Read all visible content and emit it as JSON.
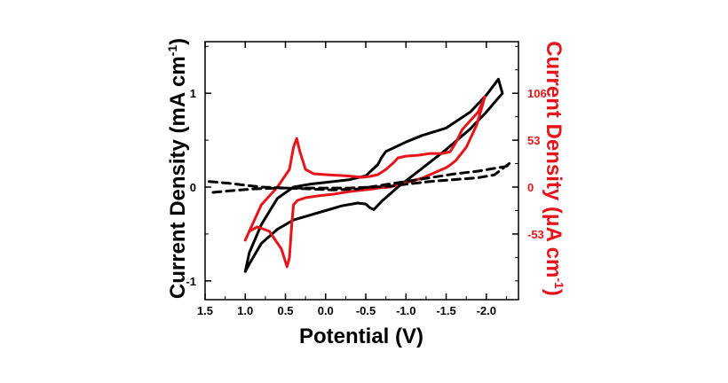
{
  "chart_data": {
    "type": "line",
    "xlabel": "Potential (V)",
    "ylabel_left": "Current Density (mA cm",
    "ylabel_left_sup": "-1",
    "ylabel_left_close": ")",
    "ylabel_right": "Current Density (μA cm",
    "ylabel_right_sup": "-1",
    "ylabel_right_close": ")",
    "x_axis": {
      "reversed": true,
      "lim": [
        1.5,
        -2.4
      ],
      "ticks": [
        1.5,
        1.0,
        0.5,
        0.0,
        -0.5,
        -1.0,
        -1.5,
        -2.0
      ],
      "tick_labels": [
        "1.5",
        "1.0",
        "0.5",
        "0.0",
        "-0.5",
        "-1.0",
        "-1.5",
        "-2.0"
      ]
    },
    "y_left": {
      "lim": [
        -1.2,
        1.55
      ],
      "ticks": [
        -1,
        0,
        1
      ],
      "tick_labels": [
        "-1",
        "0",
        "1"
      ],
      "color": "#000000"
    },
    "y_right": {
      "lim": [
        -127.2,
        164.3
      ],
      "ticks": [
        -53,
        0,
        53,
        106
      ],
      "tick_labels": [
        "-53",
        "0",
        "53",
        "106"
      ],
      "color": "#e8141b"
    },
    "series": [
      {
        "axis": "left",
        "color": "#000000",
        "style": "solid",
        "x": [
          1.0,
          0.95,
          0.8,
          0.6,
          0.4,
          0.2,
          0.0,
          -0.2,
          -0.4,
          -0.5,
          -0.55,
          -0.6,
          -0.7,
          -0.9,
          -1.2,
          -1.5,
          -1.8,
          -2.0,
          -2.2,
          -2.15,
          -2.0,
          -1.8,
          -1.5,
          -1.2,
          -1.0,
          -0.85,
          -0.75,
          -0.7,
          -0.65,
          -0.5,
          -0.3,
          0.0,
          0.2,
          0.4,
          0.6,
          0.8,
          0.95,
          1.0
        ],
        "y": [
          -0.9,
          -0.82,
          -0.6,
          -0.45,
          -0.35,
          -0.3,
          -0.25,
          -0.2,
          -0.17,
          -0.18,
          -0.22,
          -0.24,
          -0.15,
          0.0,
          0.2,
          0.4,
          0.62,
          0.8,
          1.0,
          1.15,
          0.98,
          0.8,
          0.63,
          0.55,
          0.48,
          0.42,
          0.38,
          0.32,
          0.24,
          0.12,
          0.08,
          0.05,
          0.03,
          0.0,
          -0.12,
          -0.4,
          -0.7,
          -0.9
        ]
      },
      {
        "axis": "right",
        "color": "#e8141b",
        "style": "solid",
        "x": [
          1.0,
          0.95,
          0.85,
          0.7,
          0.55,
          0.48,
          0.45,
          0.42,
          0.4,
          0.35,
          0.25,
          0.1,
          -0.1,
          -0.3,
          -0.5,
          -0.6,
          -0.65,
          -0.8,
          -1.0,
          -1.2,
          -1.4,
          -1.5,
          -1.55,
          -1.62,
          -1.75,
          -1.88,
          -1.96,
          -1.98,
          -1.9,
          -1.8,
          -1.7,
          -1.62,
          -1.55,
          -1.45,
          -1.3,
          -1.15,
          -1.0,
          -0.9,
          -0.85,
          -0.75,
          -0.65,
          -0.55,
          -0.45,
          -0.35,
          -0.2,
          0.0,
          0.15,
          0.25,
          0.32,
          0.36,
          0.4,
          0.45,
          0.6,
          0.8,
          0.95,
          1.0
        ],
        "y": [
          -60,
          -50,
          -45,
          -50,
          -70,
          -90,
          -80,
          -40,
          -20,
          -15,
          -12,
          -10,
          -8,
          -5,
          -3,
          -2,
          -1,
          0,
          5,
          10,
          18,
          22,
          25,
          30,
          45,
          70,
          95,
          102,
          85,
          75,
          65,
          50,
          40,
          38,
          38,
          36,
          35,
          33,
          28,
          20,
          14,
          12,
          11,
          12,
          13,
          14,
          15,
          20,
          40,
          55,
          45,
          20,
          0,
          -20,
          -50,
          -60
        ]
      },
      {
        "axis": "left",
        "color": "#000000",
        "style": "dashed",
        "x": [
          1.45,
          1.2,
          1.0,
          0.8,
          0.5,
          0.2,
          -0.1,
          -0.4,
          -0.7,
          -1.0,
          -1.3,
          -1.6,
          -1.9,
          -2.1,
          -2.25,
          -2.3,
          -2.1,
          -1.9,
          -1.6,
          -1.3,
          -1.0,
          -0.8,
          -0.6,
          -0.3,
          0.0,
          0.3,
          0.6,
          0.9,
          1.2,
          1.45
        ],
        "y": [
          0.06,
          0.04,
          0.02,
          0.0,
          -0.01,
          -0.02,
          -0.03,
          -0.02,
          0.02,
          0.06,
          0.1,
          0.14,
          0.17,
          0.2,
          0.22,
          0.26,
          0.13,
          0.1,
          0.08,
          0.06,
          0.03,
          0.01,
          0.0,
          -0.01,
          -0.01,
          -0.01,
          -0.01,
          -0.02,
          -0.04,
          -0.06
        ]
      }
    ]
  }
}
